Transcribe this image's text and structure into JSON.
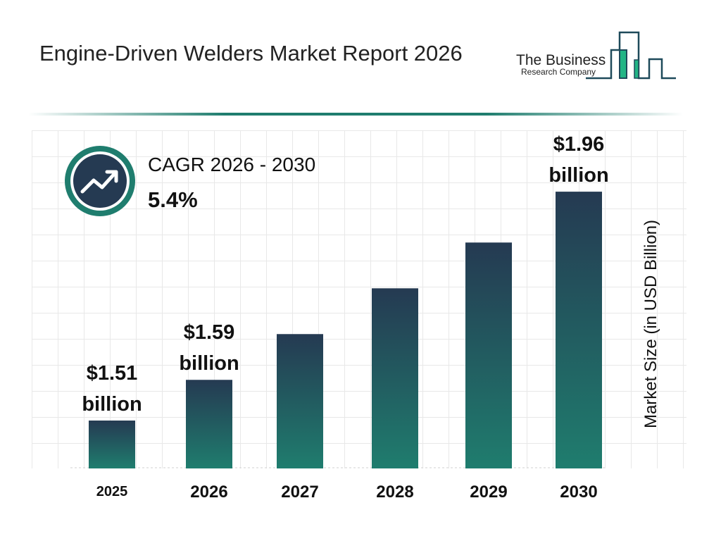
{
  "header": {
    "title": "Engine-Driven Welders Market Report 2026",
    "logo": {
      "line1": "The Business",
      "line2": "Research Company"
    }
  },
  "cagr": {
    "label": "CAGR 2026 - 2030",
    "value": "5.4%",
    "icon": "trending-up-icon"
  },
  "colors": {
    "bar_top": "#253a52",
    "bar_bottom": "#1f7d6e",
    "accent": "#1f7d6e"
  },
  "chart_data": {
    "type": "bar",
    "categories": [
      "2025",
      "2026",
      "2027",
      "2028",
      "2029",
      "2030"
    ],
    "values": [
      1.51,
      1.59,
      1.68,
      1.77,
      1.86,
      1.96
    ],
    "data_labels": [
      {
        "index": 0,
        "line1": "$1.51",
        "line2": "billion"
      },
      {
        "index": 1,
        "line1": "$1.59",
        "line2": "billion"
      },
      {
        "index": 5,
        "line1": "$1.96",
        "line2": "billion"
      }
    ],
    "title": "Engine-Driven Welders Market Report 2026",
    "xlabel": "",
    "ylabel": "Market Size (in USD Billion)",
    "grid": true
  }
}
